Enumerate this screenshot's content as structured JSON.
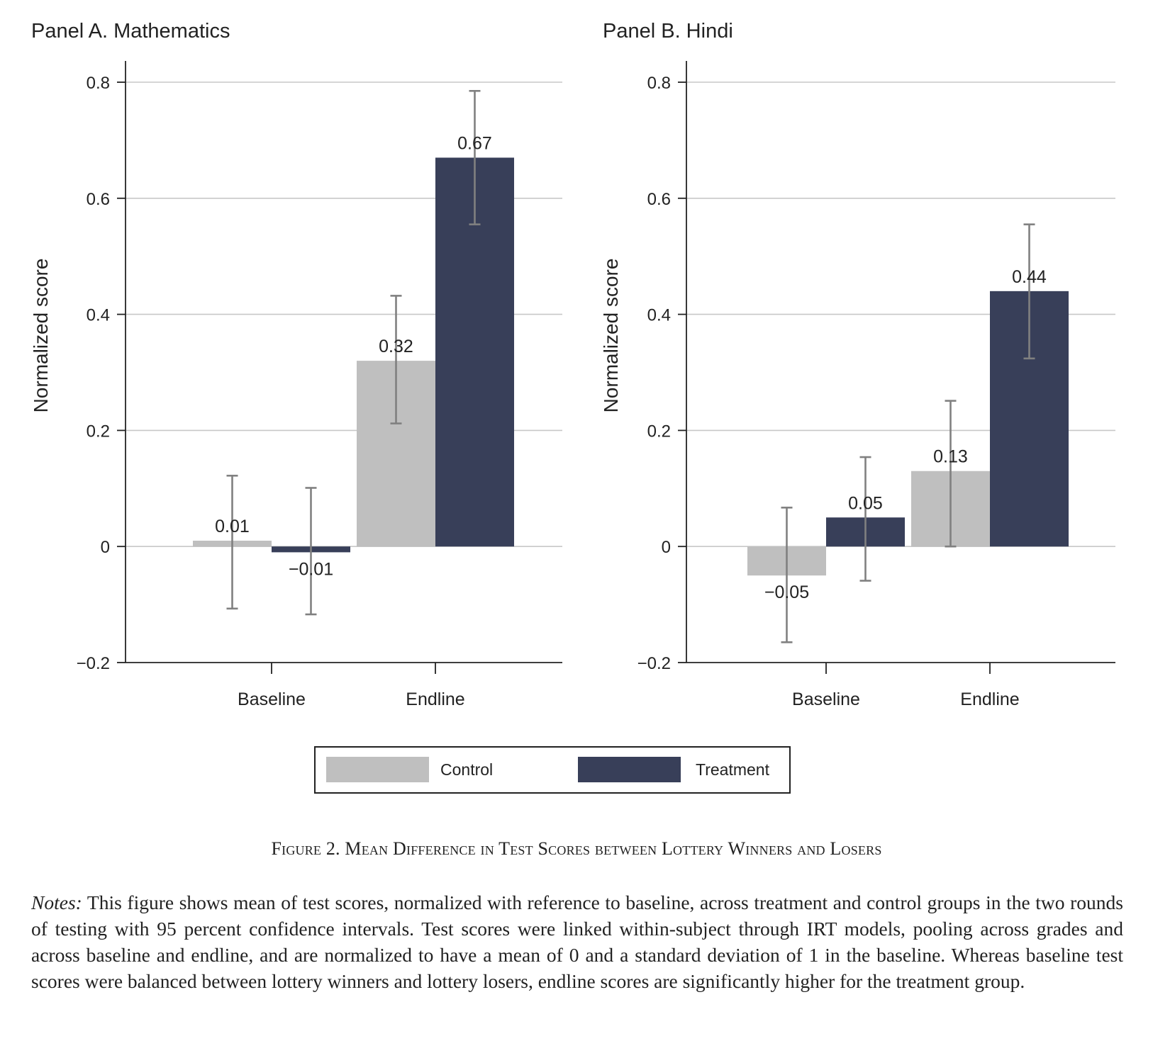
{
  "chart_data": [
    {
      "type": "bar",
      "title": "Panel A. Mathematics",
      "ylabel": "Normalized score",
      "xlabel": "",
      "ylim": [
        -0.2,
        0.8
      ],
      "yticks": [
        -0.2,
        0,
        0.2,
        0.4,
        0.6,
        0.8
      ],
      "ytick_labels": [
        "−0.2",
        "0",
        "0.2",
        "0.4",
        "0.6",
        "0.8"
      ],
      "grid": true,
      "categories": [
        "Baseline",
        "Endline"
      ],
      "series": [
        {
          "name": "Control",
          "values": [
            0.01,
            0.32
          ],
          "ci_low": [
            -0.107,
            0.212
          ],
          "ci_high": [
            0.122,
            0.432
          ],
          "labels": [
            "0.01",
            "0.32"
          ]
        },
        {
          "name": "Treatment",
          "values": [
            -0.01,
            0.67
          ],
          "ci_low": [
            -0.117,
            0.555
          ],
          "ci_high": [
            0.101,
            0.785
          ],
          "labels": [
            "−0.01",
            "0.67"
          ]
        }
      ]
    },
    {
      "type": "bar",
      "title": "Panel B. Hindi",
      "ylabel": "Normalized score",
      "xlabel": "",
      "ylim": [
        -0.2,
        0.8
      ],
      "yticks": [
        -0.2,
        0,
        0.2,
        0.4,
        0.6,
        0.8
      ],
      "ytick_labels": [
        "−0.2",
        "0",
        "0.2",
        "0.4",
        "0.6",
        "0.8"
      ],
      "grid": true,
      "categories": [
        "Baseline",
        "Endline"
      ],
      "series": [
        {
          "name": "Control",
          "values": [
            -0.05,
            0.13
          ],
          "ci_low": [
            -0.165,
            0.0
          ],
          "ci_high": [
            0.067,
            0.251
          ],
          "labels": [
            "−0.05",
            "0.13"
          ]
        },
        {
          "name": "Treatment",
          "values": [
            0.05,
            0.44
          ],
          "ci_low": [
            -0.059,
            0.324
          ],
          "ci_high": [
            0.154,
            0.555
          ],
          "labels": [
            "0.05",
            "0.44"
          ]
        }
      ]
    }
  ],
  "legend": {
    "placement": "bottom-center",
    "items": [
      {
        "label": "Control",
        "color": "#bfbfbf"
      },
      {
        "label": "Treatment",
        "color": "#383f59"
      }
    ]
  },
  "colors": {
    "control": "#bfbfbf",
    "treatment": "#383f59",
    "error_bar": "#808080",
    "grid": "#c8c8c8",
    "axis": "#222222"
  },
  "caption": "Figure 2. Mean Difference in Test Scores between Lottery Winners and Losers",
  "notes": {
    "label": "Notes:",
    "text": " This figure shows mean of test scores, normalized with reference to baseline, across treatment and control groups in the two rounds of testing with 95 percent confidence intervals. Test scores were linked within-subject through IRT models, pooling across grades and across baseline and endline, and are normalized to have a mean of 0 and a standard deviation of 1 in the baseline. Whereas baseline test scores were balanced between lottery winners and lottery losers, endline scores are significantly higher for the treatment group."
  }
}
